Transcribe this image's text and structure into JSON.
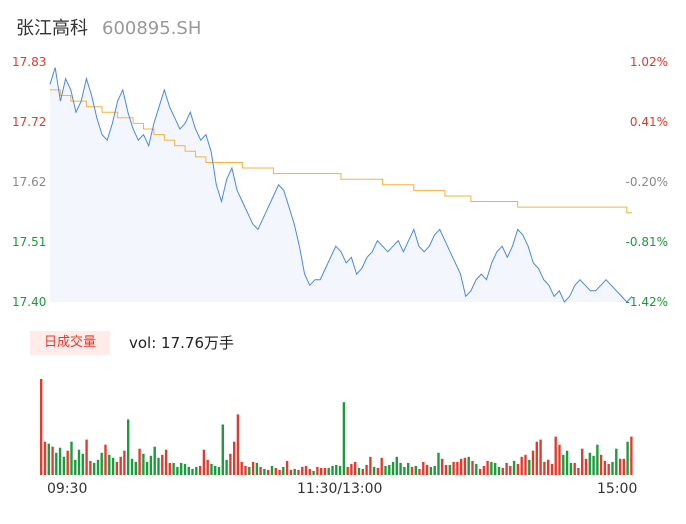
{
  "header": {
    "name": "张江高科",
    "code": "600895.SH"
  },
  "colors": {
    "up": "#e23b2e",
    "down": "#1a9b3c",
    "neutral": "#999999",
    "price_line": "#4c87e6",
    "avg_line": "#f5b33b"
  },
  "price_axis": {
    "left_labels": [
      "17.83",
      "17.72",
      "17.62",
      "17.51",
      "17.40"
    ],
    "right_labels": [
      "1.02%",
      "0.41%",
      "-0.20%",
      "-0.81%",
      "-1.42%"
    ]
  },
  "volume": {
    "tab_label": "日成交量",
    "summary": "vol: 17.76万手"
  },
  "time_axis": [
    "09:30",
    "11:30/13:00",
    "15:00"
  ],
  "chart_data": {
    "type": "line",
    "ylim": [
      17.4,
      17.83
    ],
    "price": [
      17.79,
      17.82,
      17.76,
      17.8,
      17.78,
      17.74,
      17.76,
      17.8,
      17.77,
      17.73,
      17.7,
      17.69,
      17.72,
      17.76,
      17.78,
      17.74,
      17.71,
      17.69,
      17.7,
      17.68,
      17.72,
      17.75,
      17.78,
      17.75,
      17.73,
      17.71,
      17.72,
      17.74,
      17.71,
      17.69,
      17.7,
      17.67,
      17.61,
      17.58,
      17.62,
      17.64,
      17.6,
      17.58,
      17.56,
      17.54,
      17.53,
      17.55,
      17.57,
      17.59,
      17.61,
      17.6,
      17.57,
      17.54,
      17.5,
      17.45,
      17.43,
      17.44,
      17.44,
      17.46,
      17.48,
      17.5,
      17.49,
      17.47,
      17.48,
      17.45,
      17.46,
      17.48,
      17.49,
      17.51,
      17.5,
      17.49,
      17.5,
      17.51,
      17.49,
      17.51,
      17.53,
      17.5,
      17.49,
      17.5,
      17.52,
      17.53,
      17.51,
      17.49,
      17.47,
      17.45,
      17.41,
      17.42,
      17.44,
      17.45,
      17.44,
      17.47,
      17.49,
      17.5,
      17.48,
      17.5,
      17.53,
      17.52,
      17.5,
      17.47,
      17.46,
      17.44,
      17.43,
      17.41,
      17.42,
      17.4,
      17.41,
      17.43,
      17.44,
      17.43,
      17.42,
      17.42,
      17.43,
      17.44,
      17.43,
      17.42,
      17.41,
      17.4,
      17.41
    ],
    "avg": [
      17.78,
      17.78,
      17.77,
      17.77,
      17.76,
      17.76,
      17.76,
      17.75,
      17.75,
      17.75,
      17.74,
      17.74,
      17.74,
      17.73,
      17.73,
      17.73,
      17.72,
      17.72,
      17.71,
      17.71,
      17.7,
      17.7,
      17.69,
      17.69,
      17.68,
      17.68,
      17.67,
      17.67,
      17.66,
      17.66,
      17.65,
      17.65,
      17.65,
      17.65,
      17.65,
      17.65,
      17.65,
      17.64,
      17.64,
      17.64,
      17.64,
      17.64,
      17.64,
      17.63,
      17.63,
      17.63,
      17.63,
      17.63,
      17.63,
      17.63,
      17.63,
      17.63,
      17.63,
      17.63,
      17.63,
      17.63,
      17.62,
      17.62,
      17.62,
      17.62,
      17.62,
      17.62,
      17.62,
      17.62,
      17.61,
      17.61,
      17.61,
      17.61,
      17.61,
      17.61,
      17.6,
      17.6,
      17.6,
      17.6,
      17.6,
      17.6,
      17.59,
      17.59,
      17.59,
      17.59,
      17.59,
      17.58,
      17.58,
      17.58,
      17.58,
      17.58,
      17.58,
      17.58,
      17.58,
      17.58,
      17.57,
      17.57,
      17.57,
      17.57,
      17.57,
      17.57,
      17.57,
      17.57,
      17.57,
      17.57,
      17.57,
      17.57,
      17.57,
      17.57,
      17.57,
      17.57,
      17.57,
      17.57,
      17.57,
      17.57,
      17.57,
      17.56,
      17.56
    ],
    "volume": [
      95,
      33,
      31,
      28,
      22,
      27,
      18,
      24,
      33,
      15,
      25,
      21,
      35,
      14,
      12,
      15,
      22,
      30,
      20,
      17,
      13,
      18,
      24,
      55,
      16,
      13,
      26,
      21,
      13,
      19,
      28,
      17,
      20,
      25,
      12,
      12,
      8,
      12,
      11,
      8,
      6,
      8,
      9,
      25,
      15,
      11,
      9,
      8,
      50,
      15,
      21,
      33,
      60,
      13,
      9,
      8,
      13,
      12,
      8,
      6,
      5,
      9,
      7,
      5,
      8,
      14,
      5,
      6,
      5,
      8,
      9,
      6,
      4,
      8,
      7,
      7,
      7,
      9,
      10,
      9,
      72,
      8,
      11,
      13,
      7,
      6,
      10,
      18,
      8,
      7,
      17,
      9,
      10,
      13,
      18,
      12,
      8,
      12,
      8,
      9,
      6,
      13,
      10,
      8,
      9,
      22,
      16,
      10,
      10,
      13,
      13,
      16,
      17,
      18,
      14,
      11,
      6,
      9,
      14,
      13,
      12,
      8,
      7,
      12,
      9,
      14,
      11,
      18,
      20,
      15,
      24,
      33,
      35,
      13,
      15,
      11,
      38,
      30,
      20,
      24,
      12,
      12,
      7,
      26,
      16,
      22,
      19,
      30,
      20,
      14,
      11,
      13,
      26,
      16,
      16,
      33,
      38
    ],
    "volume_up": [
      1,
      1,
      0,
      1,
      0,
      0,
      0,
      1,
      0,
      0,
      0,
      0,
      1,
      1,
      0,
      0,
      0,
      1,
      0,
      0,
      1,
      1,
      1,
      0,
      0,
      0,
      1,
      0,
      0,
      0,
      0,
      0,
      1,
      1,
      1,
      0,
      0,
      0,
      0,
      0,
      0,
      0,
      1,
      1,
      1,
      0,
      0,
      0,
      0,
      0,
      1,
      1,
      1,
      1,
      1,
      0,
      1,
      0,
      1,
      0,
      1,
      0,
      1,
      1,
      0,
      1,
      1,
      0,
      1,
      1,
      1,
      1,
      0,
      1,
      1,
      1,
      0,
      0,
      0,
      0,
      0,
      1,
      1,
      1,
      0,
      1,
      1,
      1,
      0,
      1,
      1,
      0,
      0,
      0,
      0,
      0,
      0,
      0,
      1,
      0,
      1,
      1,
      1,
      0,
      0,
      0,
      1,
      1,
      0,
      1,
      1,
      1,
      1,
      0,
      1,
      0,
      1,
      1,
      1,
      0,
      0,
      0,
      1,
      1,
      1,
      0,
      1,
      1,
      1,
      0,
      1,
      1,
      1,
      1,
      1,
      1,
      1,
      1,
      0,
      0,
      0,
      1,
      1,
      1,
      1,
      0,
      0,
      0,
      1,
      1,
      1,
      0,
      0,
      1,
      1,
      0,
      1
    ]
  }
}
